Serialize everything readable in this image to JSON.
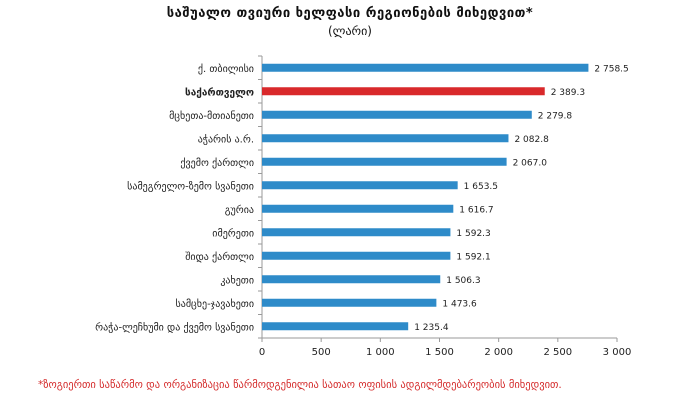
{
  "chart_data": {
    "type": "bar",
    "orientation": "horizontal",
    "title": "საშუალო თვიური ხელფასი რეგიონების მიხედვით*",
    "subtitle": "(ლარი)",
    "categories": [
      "ქ. თბილისი",
      "საქართველო",
      "მცხეთა-მთიანეთი",
      "აჭარის ა.რ.",
      "ქვემო ქართლი",
      "სამეგრელო-ზემო სვანეთი",
      "გურია",
      "იმერეთი",
      "შიდა ქართლი",
      "კახეთი",
      "სამცხე-ჯავახეთი",
      "რაჭა-ლეჩხუმი და ქვემო სვანეთი"
    ],
    "values": [
      2758.5,
      2389.3,
      2279.8,
      2082.8,
      2067.0,
      1653.5,
      1616.7,
      1592.3,
      1592.1,
      1506.3,
      1473.6,
      1235.4
    ],
    "value_labels": [
      "2 758.5",
      "2 389.3",
      "2 279.8",
      "2 082.8",
      "2 067.0",
      "1 653.5",
      "1 616.7",
      "1 592.3",
      "1 592.1",
      "1 506.3",
      "1 473.6",
      "1 235.4"
    ],
    "highlight_category": "საქართველო",
    "xlim": [
      0,
      3000
    ],
    "xticks": [
      0,
      500,
      1000,
      1500,
      2000,
      2500,
      3000
    ],
    "xtick_labels": [
      "0",
      "500",
      "1 000",
      "1 500",
      "2 000",
      "2 500",
      "3 000"
    ],
    "xlabel": "",
    "ylabel": "",
    "grid": false,
    "legend": "none"
  },
  "colors": {
    "bar": "#2e8bc9",
    "highlight": "#d9292b",
    "axis": "#9a9a9a",
    "text": "#222222",
    "footnote": "#d42b2b"
  },
  "footnote": "*ზოგიერთი საწარმო და ორგანიზაცია წარმოდგენილია სათაო ოფისის ადგილმდებარეობის მიხედვით."
}
